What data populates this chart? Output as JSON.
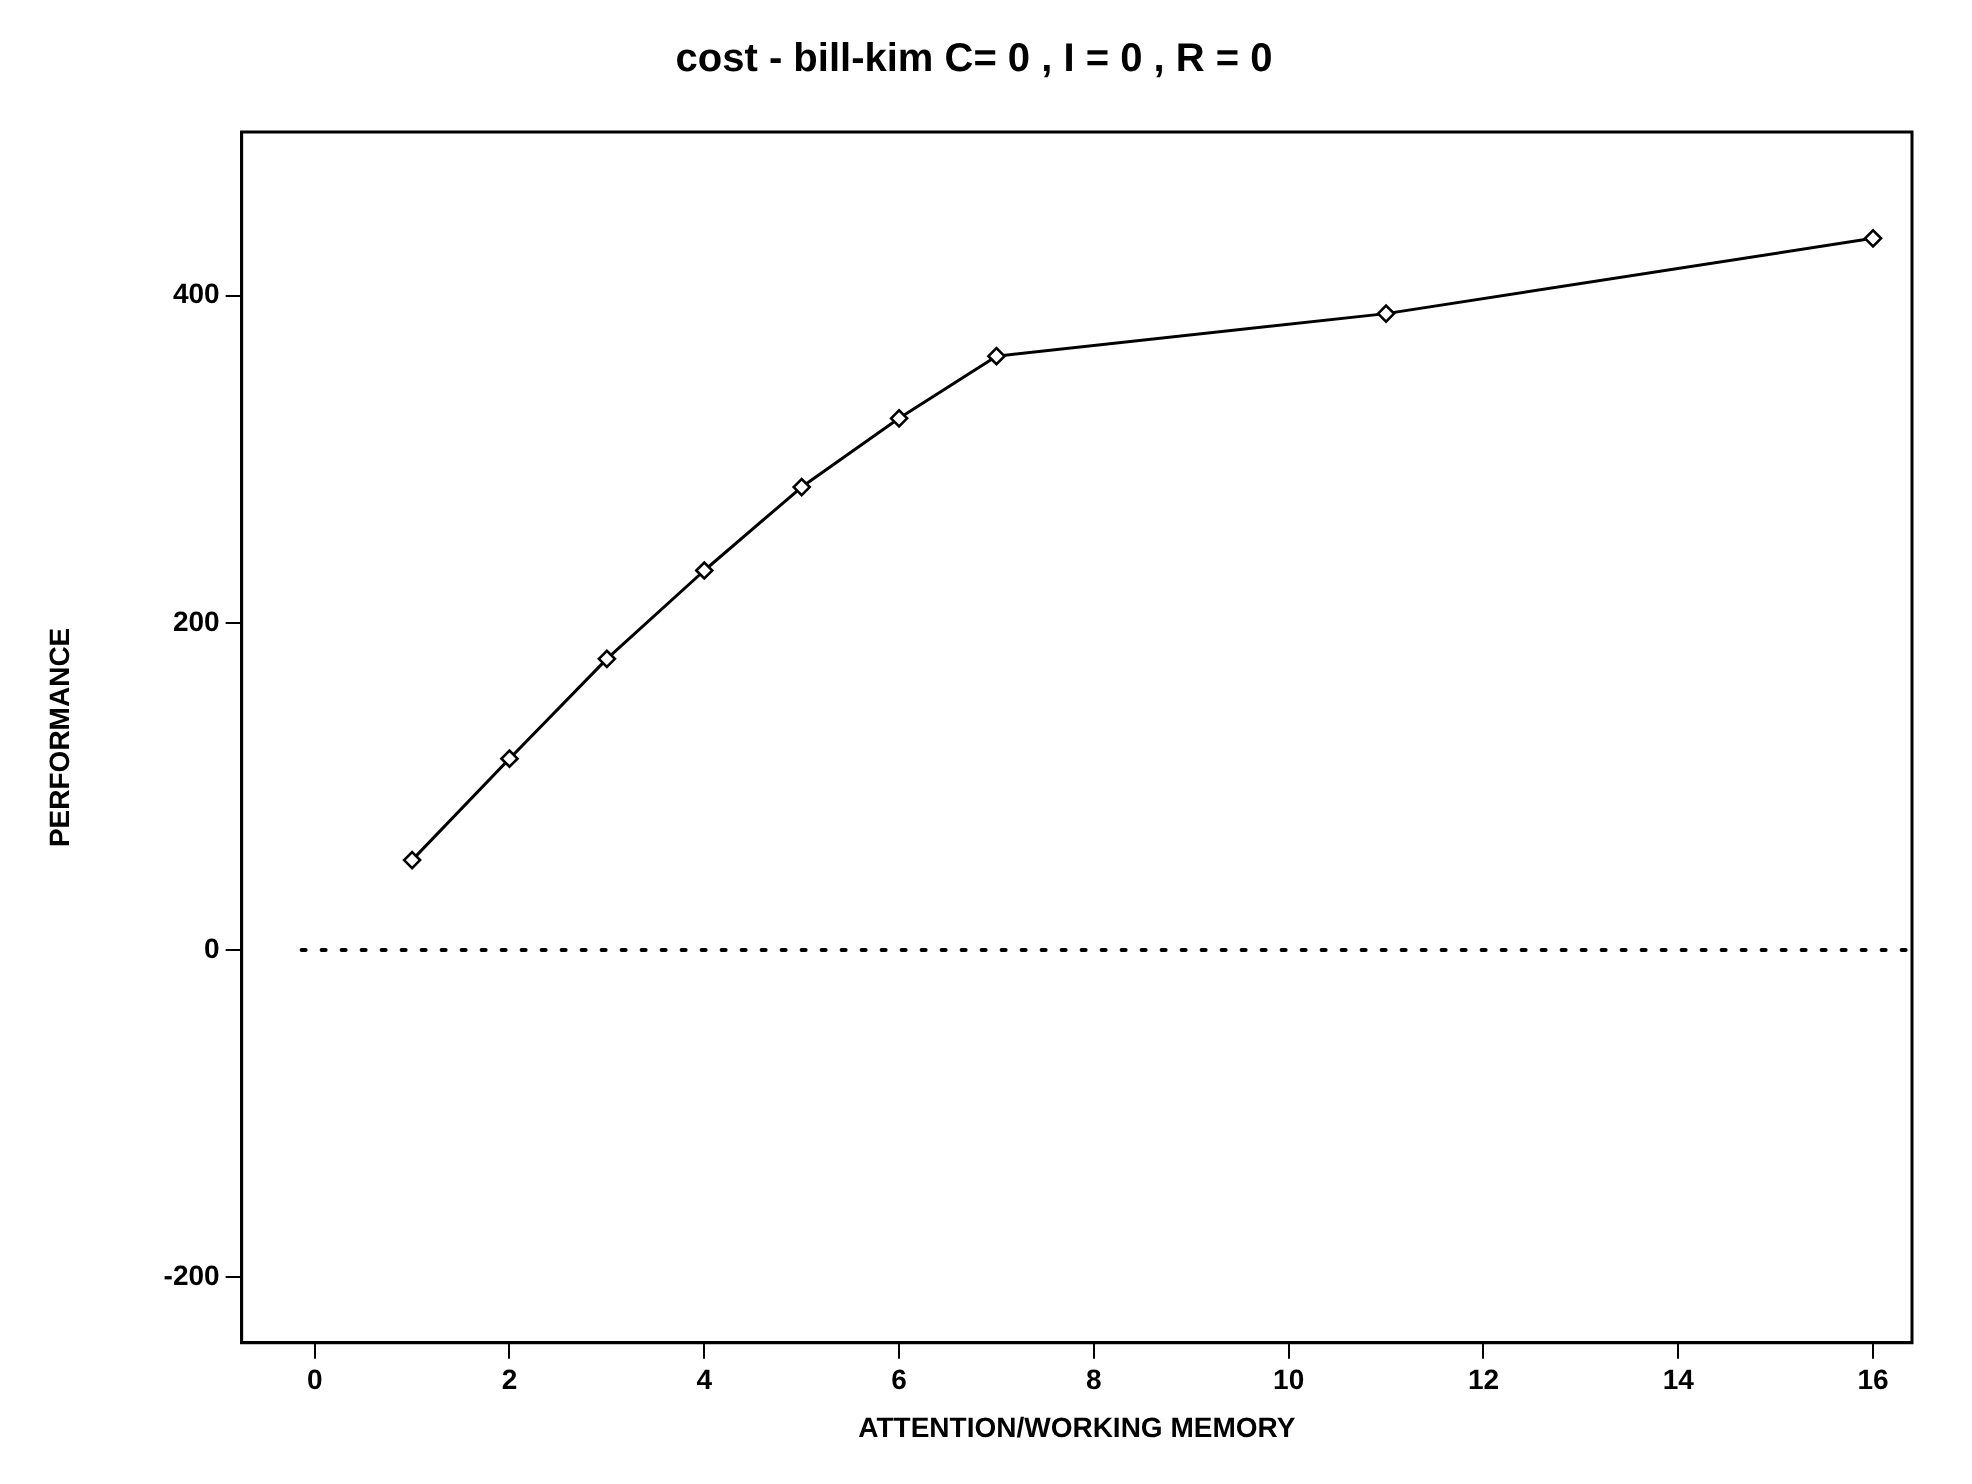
{
  "chart_data": {
    "type": "line",
    "title": "cost - bill-kim C= 0 , I = 0 , R = 0",
    "xlabel": "ATTENTION/WORKING MEMORY",
    "ylabel": "PERFORMANCE",
    "x": [
      1,
      2,
      3,
      4,
      5,
      6,
      7,
      11,
      16
    ],
    "series": [
      {
        "color": "#000000",
        "values": [
          55,
          117,
          178,
          232,
          283,
          325,
          363,
          389,
          435
        ]
      }
    ],
    "xlim": [
      -0.75,
      16.4
    ],
    "xticks": [
      0,
      2,
      4,
      6,
      8,
      10,
      12,
      14,
      16
    ],
    "ylim": [
      -240,
      500
    ],
    "yticks": [
      -200,
      0,
      200,
      400
    ],
    "ref_lines": [
      {
        "axis": "y",
        "value": 0,
        "line_style": "dotted",
        "color": "#000000"
      }
    ],
    "marker": "diamond",
    "line_style": "solid",
    "grid": false,
    "legend": false
  }
}
